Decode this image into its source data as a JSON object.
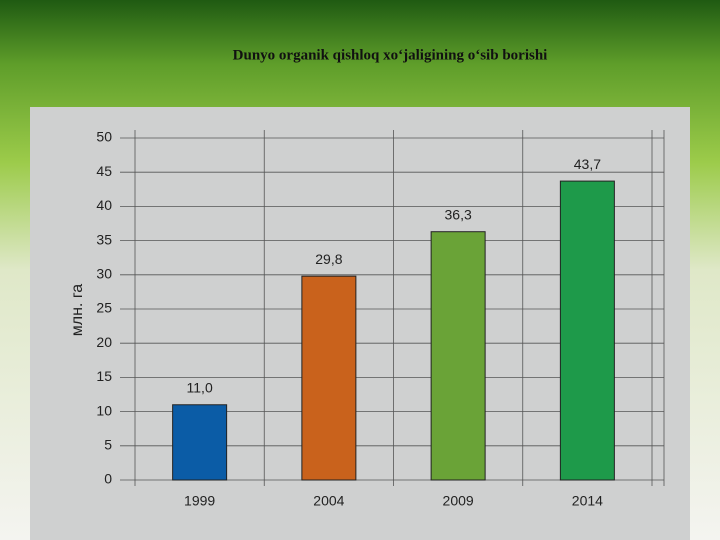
{
  "chart_data": {
    "type": "bar",
    "title": "Dunyo organik qishloq xo‘jaligining o‘sib borishi",
    "y_label": "млн. га",
    "categories": [
      "1999",
      "2004",
      "2009",
      "2014"
    ],
    "values": [
      11.0,
      29.8,
      36.3,
      43.7
    ],
    "value_labels": [
      "11,0",
      "29,8",
      "36,3",
      "43,7"
    ],
    "colors": [
      "#0b5ca6",
      "#c9621c",
      "#6aa337",
      "#1e9a4a"
    ],
    "ylim": [
      0,
      50
    ],
    "yticks": [
      0,
      5,
      10,
      15,
      20,
      25,
      30,
      35,
      40,
      45,
      50
    ],
    "grid": true
  }
}
